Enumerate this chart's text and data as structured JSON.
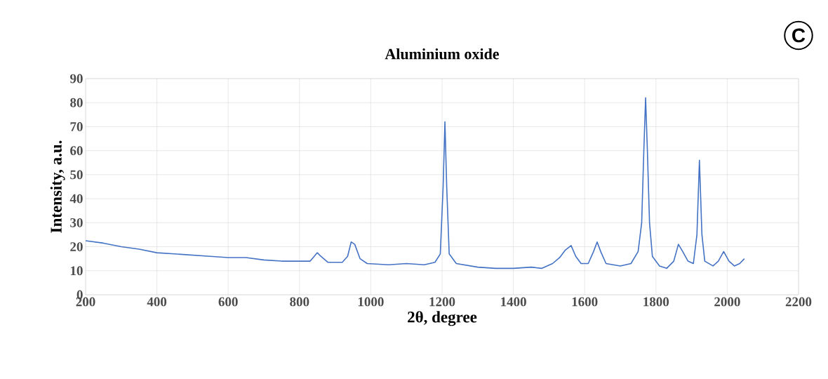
{
  "chart_data": {
    "type": "line",
    "title": "Aluminium oxide",
    "xlabel": "2θ, degree",
    "ylabel": "Intensity, a.u.",
    "annotations": [
      "C"
    ],
    "xlim": [
      200,
      2200
    ],
    "xticks": [
      200,
      400,
      600,
      800,
      1000,
      1200,
      1400,
      1600,
      1800,
      2000,
      2200
    ],
    "ylim": [
      0,
      90
    ],
    "yticks": [
      0,
      10,
      20,
      30,
      40,
      50,
      60,
      70,
      80,
      90
    ],
    "grid": true,
    "marker": "none",
    "line_style": "solid",
    "x": [
      200,
      250,
      300,
      350,
      400,
      450,
      500,
      550,
      600,
      650,
      700,
      750,
      800,
      830,
      850,
      860,
      880,
      920,
      935,
      945,
      955,
      970,
      990,
      1050,
      1100,
      1150,
      1180,
      1195,
      1203,
      1208,
      1213,
      1220,
      1240,
      1300,
      1350,
      1400,
      1450,
      1480,
      1510,
      1530,
      1545,
      1562,
      1575,
      1590,
      1610,
      1625,
      1635,
      1645,
      1660,
      1700,
      1730,
      1750,
      1760,
      1766,
      1771,
      1776,
      1782,
      1790,
      1810,
      1830,
      1850,
      1863,
      1875,
      1890,
      1905,
      1915,
      1922,
      1929,
      1937,
      1960,
      1975,
      1990,
      2005,
      2020,
      2035,
      2048
    ],
    "series": [
      {
        "color": "#4472c4",
        "values": [
          22.5,
          21.5,
          20,
          19,
          17.5,
          17,
          16.5,
          16,
          15.5,
          15.5,
          14.5,
          14,
          14,
          14,
          17.5,
          16,
          13.5,
          13.5,
          16,
          22,
          21,
          15,
          13,
          12.5,
          13,
          12.5,
          13.5,
          17,
          45,
          72,
          45,
          17,
          13,
          11.5,
          11,
          11,
          11.5,
          11,
          13,
          15.5,
          18.5,
          20.5,
          16,
          13,
          13,
          18,
          22,
          18,
          13,
          12,
          13,
          18,
          30,
          60,
          82,
          60,
          30,
          16,
          12,
          11,
          14,
          21,
          18,
          14,
          13,
          25,
          56,
          25,
          14,
          12,
          14,
          18,
          14,
          12,
          13,
          15
        ]
      }
    ]
  }
}
